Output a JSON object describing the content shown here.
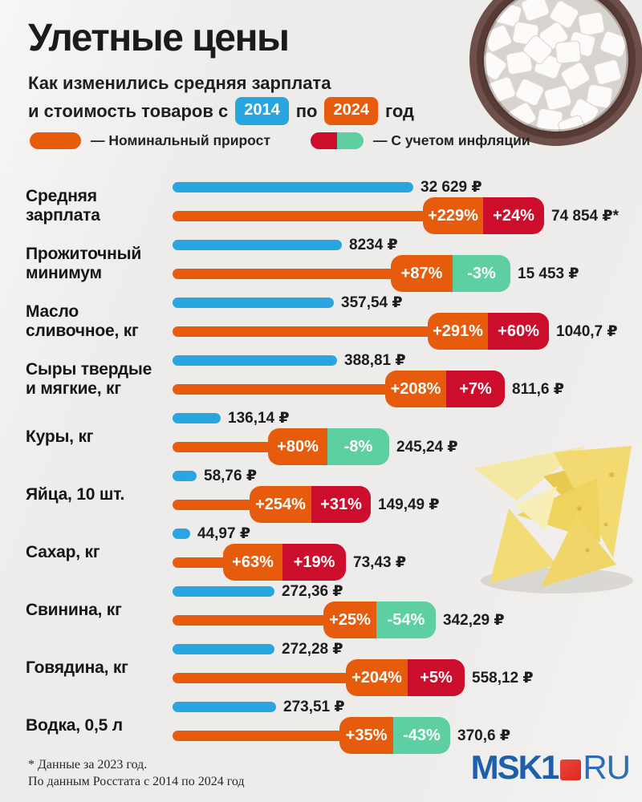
{
  "header": {
    "title": "Улетные цены",
    "subtitle_line1": "Как изменились средняя зарплата",
    "subtitle_prefix": "и стоимость товаров с",
    "year_from": "2014",
    "conj": "по",
    "year_to": "2024",
    "suffix": "год"
  },
  "legend": {
    "nominal": "— Номинальный прирост",
    "inflation": "— С учетом инфляции"
  },
  "footer": {
    "note1": "* Данные за 2023 год.",
    "note2": "По данным Росстата с 2014 по 2024 год",
    "logo_msk": "MSK1",
    "logo_ru": "RU"
  },
  "colors": {
    "background": "#edecea",
    "bar_2014_blue": "#29a6df",
    "bar_2024_orange": "#e65c0c",
    "inflation_up_red": "#cd0d2c",
    "inflation_down_green": "#5ecfa1",
    "logo_blue": "#1e5fa9",
    "logo_red": "#d92a20"
  },
  "rows": [
    {
      "label": [
        "Средняя",
        "зарплата"
      ],
      "v2014": "32 629 ₽",
      "v2024": "74 854 ₽*",
      "nominal": "+229%",
      "real": "+24%",
      "real_class": "red",
      "blue_w": 300,
      "line_w": 312,
      "b1_w": 75,
      "b2_w": 76
    },
    {
      "label": [
        "Прожиточный",
        "минимум"
      ],
      "v2014": "8234 ₽",
      "v2024": "15 453 ₽",
      "nominal": "+87%",
      "real": "-3%",
      "real_class": "green",
      "blue_w": 211,
      "line_w": 272,
      "b1_w": 77,
      "b2_w": 72
    },
    {
      "label": [
        "Масло",
        "сливочное, кг"
      ],
      "v2014": "357,54 ₽",
      "v2024": "1040,7 ₽",
      "nominal": "+291%",
      "real": "+60%",
      "real_class": "red",
      "blue_w": 201,
      "line_w": 318,
      "b1_w": 75,
      "b2_w": 76
    },
    {
      "label": [
        "Сыры твердые",
        "и мягкие, кг"
      ],
      "v2014": "388,81 ₽",
      "v2024": "811,6 ₽",
      "nominal": "+208%",
      "real": "+7%",
      "real_class": "red",
      "blue_w": 205,
      "line_w": 265,
      "b1_w": 76,
      "b2_w": 73
    },
    {
      "label": [
        "Куры, кг"
      ],
      "v2014": "136,14 ₽",
      "v2024": "245,24 ₽",
      "nominal": "+80%",
      "real": "-8%",
      "real_class": "green",
      "blue_w": 60,
      "line_w": 119,
      "b1_w": 74,
      "b2_w": 77
    },
    {
      "label": [
        "Яйца, 10 шт."
      ],
      "v2014": "58,76 ₽",
      "v2024": "149,49 ₽",
      "nominal": "+254%",
      "real": "+31%",
      "real_class": "red",
      "blue_w": 30,
      "line_w": 96,
      "b1_w": 77,
      "b2_w": 74
    },
    {
      "label": [
        "Сахар, кг"
      ],
      "v2014": "44,97 ₽",
      "v2024": "73,43 ₽",
      "nominal": "+63%",
      "real": "+19%",
      "real_class": "red",
      "blue_w": 22,
      "line_w": 63,
      "b1_w": 74,
      "b2_w": 79
    },
    {
      "label": [
        "Свинина, кг"
      ],
      "v2014": "272,36 ₽",
      "v2024": "342,29 ₽",
      "nominal": "+25%",
      "real": "-54%",
      "real_class": "green",
      "blue_w": 127,
      "line_w": 188,
      "b1_w": 66,
      "b2_w": 74
    },
    {
      "label": [
        "Говядина, кг"
      ],
      "v2014": "272,28 ₽",
      "v2024": "558,12 ₽",
      "nominal": "+204%",
      "real": "+5%",
      "real_class": "red",
      "blue_w": 127,
      "line_w": 216,
      "b1_w": 77,
      "b2_w": 71
    },
    {
      "label": [
        "Водка, 0,5 л"
      ],
      "v2014": "273,51 ₽",
      "v2024": "370,6 ₽",
      "nominal": "+35%",
      "real": "-43%",
      "real_class": "green",
      "blue_w": 129,
      "line_w": 208,
      "b1_w": 67,
      "b2_w": 71
    }
  ],
  "chart_data": {
    "type": "bar",
    "title": "Улетные цены",
    "subtitle": "Как изменились средняя зарплата и стоимость товаров с 2014 по 2024 год",
    "unit": "₽",
    "legend": [
      "Номинальный прирост",
      "С учетом инфляции"
    ],
    "legend_position": "top",
    "orientation": "horizontal",
    "grid": false,
    "categories": [
      "Средняя зарплата",
      "Прожиточный минимум",
      "Масло сливочное, кг",
      "Сыры твердые и мягкие, кг",
      "Куры, кг",
      "Яйца, 10 шт.",
      "Сахар, кг",
      "Свинина, кг",
      "Говядина, кг",
      "Водка, 0,5 л"
    ],
    "series": [
      {
        "name": "2014, ₽",
        "values": [
          32629,
          8234,
          357.54,
          388.81,
          136.14,
          58.76,
          44.97,
          272.36,
          272.28,
          273.51
        ]
      },
      {
        "name": "2024, ₽",
        "values": [
          74854,
          15453,
          1040.7,
          811.6,
          245.24,
          149.49,
          73.43,
          342.29,
          558.12,
          370.6
        ]
      },
      {
        "name": "Номинальный прирост, %",
        "values": [
          229,
          87,
          291,
          208,
          80,
          254,
          63,
          25,
          204,
          35
        ]
      },
      {
        "name": "С учетом инфляции, %",
        "values": [
          24,
          -3,
          60,
          7,
          -8,
          31,
          19,
          -54,
          5,
          -43
        ]
      }
    ],
    "annotations": [
      "* Данные за 2023 год.",
      "По данным Росстата с 2014 по 2024 год"
    ]
  }
}
